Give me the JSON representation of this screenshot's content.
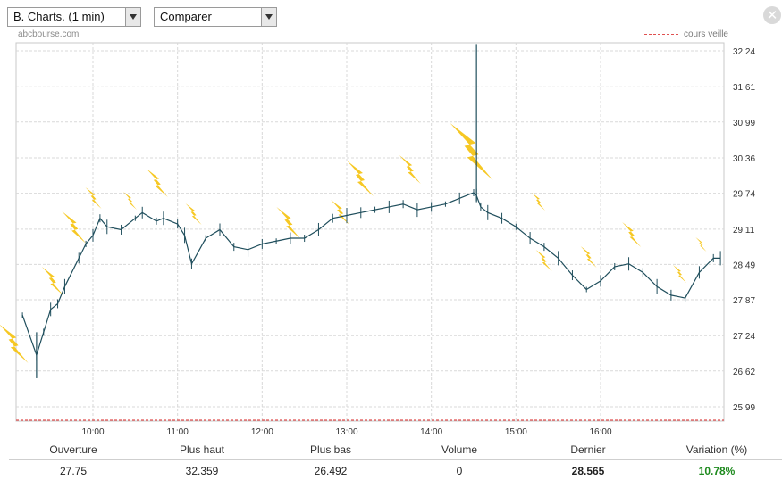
{
  "toolbar": {
    "interval_label": "B. Charts. (1 min)",
    "compare_label": "Comparer"
  },
  "header": {
    "source": "abcbourse.com",
    "legend_label": "cours veille"
  },
  "colors": {
    "price_line": "#1f4e5c",
    "previous_close": "#e05050",
    "grid": "#d9d9d9",
    "lightning": "#f5c518",
    "variation_positive": "#1e8a1e"
  },
  "chart_data": {
    "type": "line",
    "title": "",
    "xlabel": "",
    "ylabel": "",
    "x_ticks": [
      "10:00",
      "11:00",
      "12:00",
      "13:00",
      "14:00",
      "15:00",
      "16:00"
    ],
    "y_ticks": [
      "32.24",
      "31.61",
      "30.99",
      "30.36",
      "29.74",
      "29.11",
      "28.49",
      "27.87",
      "27.24",
      "26.62",
      "25.99"
    ],
    "y_tick_values": [
      32.24,
      31.61,
      30.99,
      30.36,
      29.74,
      29.11,
      28.49,
      27.87,
      27.24,
      26.62,
      25.99
    ],
    "ylim": [
      25.99,
      32.24
    ],
    "xlim": [
      "09:10",
      "17:30"
    ],
    "previous_close": 25.76,
    "grid": true,
    "legend_position": "top-right",
    "series": [
      {
        "x": [
          "09:10",
          "09:20",
          "09:25",
          "09:30",
          "09:35",
          "09:40",
          "09:50",
          "09:55",
          "10:00",
          "10:05",
          "10:10",
          "10:20",
          "10:30",
          "10:35",
          "10:45",
          "10:50",
          "11:00",
          "11:05",
          "11:10",
          "11:20",
          "11:30",
          "11:40",
          "11:50",
          "12:00",
          "12:10",
          "12:20",
          "12:30",
          "12:40",
          "12:50",
          "13:00",
          "13:10",
          "13:20",
          "13:30",
          "13:40",
          "13:50",
          "14:00",
          "14:10",
          "14:20",
          "14:30",
          "14:32",
          "14:35",
          "14:40",
          "14:50",
          "15:00",
          "15:10",
          "15:20",
          "15:30",
          "15:40",
          "15:50",
          "16:00",
          "16:10",
          "16:20",
          "16:30",
          "16:40",
          "16:50",
          "17:00",
          "17:10",
          "17:20",
          "17:25"
        ],
        "values": [
          27.6,
          26.9,
          27.3,
          27.7,
          27.8,
          28.1,
          28.6,
          28.85,
          29.0,
          29.3,
          29.15,
          29.1,
          29.3,
          29.4,
          29.25,
          29.3,
          29.2,
          29.0,
          28.5,
          28.95,
          29.1,
          28.8,
          28.75,
          28.85,
          28.9,
          28.95,
          28.95,
          29.1,
          29.3,
          29.35,
          29.4,
          29.45,
          29.5,
          29.55,
          29.45,
          29.5,
          29.55,
          29.65,
          29.75,
          29.7,
          29.5,
          29.4,
          29.3,
          29.15,
          28.95,
          28.8,
          28.6,
          28.3,
          28.05,
          28.2,
          28.45,
          28.5,
          28.35,
          28.1,
          27.95,
          27.9,
          28.35,
          28.6,
          28.6
        ]
      }
    ]
  },
  "stats": {
    "labels": [
      "Ouverture",
      "Plus haut",
      "Plus bas",
      "Volume",
      "Dernier",
      "Variation (%)"
    ],
    "values": [
      "27.75",
      "32.359",
      "26.492",
      "0",
      "28.565",
      "10.78%"
    ]
  }
}
